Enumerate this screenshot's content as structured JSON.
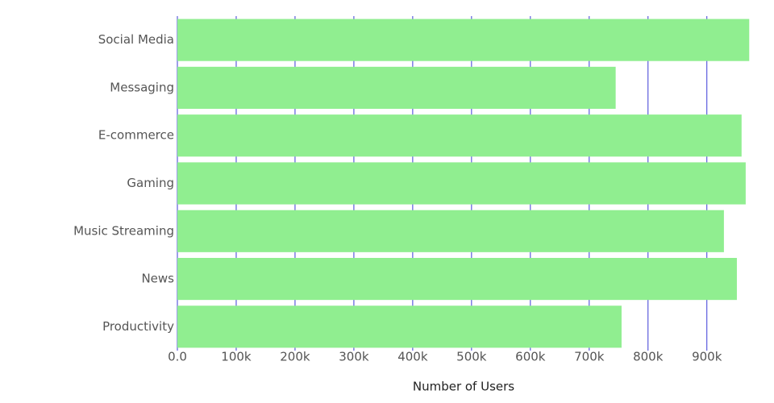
{
  "chart_data": {
    "type": "bar",
    "orientation": "horizontal",
    "x_label": "Number of Users",
    "categories": [
      "Social Media",
      "Messaging",
      "E-commerce",
      "Gaming",
      "Music Streaming",
      "News",
      "Productivity"
    ],
    "values": [
      972000,
      745000,
      959000,
      966000,
      929000,
      951000,
      755000
    ],
    "color": "#90ee90",
    "xlim": [
      0,
      973000
    ],
    "xticks": [
      {
        "value": 0,
        "label": "0.0"
      },
      {
        "value": 100000,
        "label": "100k"
      },
      {
        "value": 200000,
        "label": "200k"
      },
      {
        "value": 300000,
        "label": "300k"
      },
      {
        "value": 400000,
        "label": "400k"
      },
      {
        "value": 500000,
        "label": "500k"
      },
      {
        "value": 600000,
        "label": "600k"
      },
      {
        "value": 700000,
        "label": "700k"
      },
      {
        "value": 800000,
        "label": "800k"
      },
      {
        "value": 900000,
        "label": "900k"
      }
    ],
    "grid": true,
    "grid_color": "#3b3bd6"
  }
}
